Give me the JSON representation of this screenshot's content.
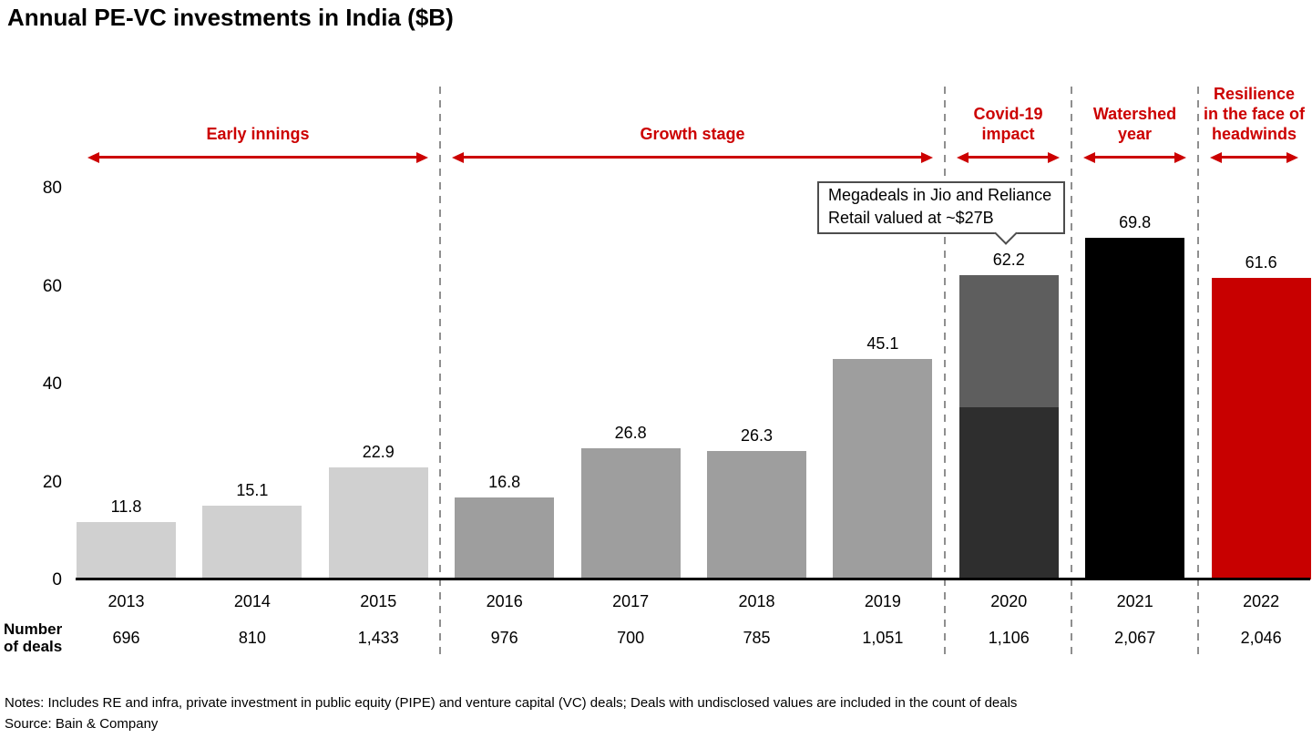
{
  "title": "Annual PE-VC investments in India ($B)",
  "callout": {
    "line1": "Megadeals in Jio and Reliance",
    "line2": "Retail valued at ~$27B"
  },
  "row_header": {
    "line1": "Number",
    "line2": "of deals"
  },
  "notes": "Notes: Includes RE and infra, private investment in public equity (PIPE) and venture capital (VC) deals; Deals with undisclosed values are included in the count of deals",
  "source": "Source: Bain & Company",
  "colors": {
    "phase_text_red": "#cc0000",
    "bar_red_2022": "#c80000",
    "bar_light_gray": "#d0d0d0",
    "bar_mid_gray": "#9e9e9e",
    "bar_2020_top": "#5e5e5e",
    "bar_2020_bottom": "#2e2e2e",
    "bar_black_2021": "#000000",
    "dashed_line_gray": "#8f8f8f"
  },
  "chart_data": {
    "type": "bar",
    "title": "Annual PE-VC investments in India ($B)",
    "xlabel": "",
    "ylabel": "",
    "ylim": [
      0,
      80
    ],
    "yticks": [
      "0",
      "20",
      "40",
      "60",
      "80"
    ],
    "grid": false,
    "legend": "none",
    "categories": [
      "2013",
      "2014",
      "2015",
      "2016",
      "2017",
      "2018",
      "2019",
      "2020",
      "2021",
      "2022"
    ],
    "values": [
      11.8,
      15.1,
      22.9,
      16.8,
      26.8,
      26.3,
      45.1,
      62.2,
      69.8,
      61.6
    ],
    "deals_row_label": "Number of deals",
    "deals": [
      "696",
      "810",
      "1,433",
      "976",
      "700",
      "785",
      "1,051",
      "1,106",
      "2,067",
      "2,046"
    ],
    "annotation": "Megadeals in Jio and Reliance Retail valued at ~$27B",
    "bars": [
      {
        "year": "2013",
        "value": 11.8,
        "label": "11.8",
        "deals": "696",
        "color": "#d0d0d0"
      },
      {
        "year": "2014",
        "value": 15.1,
        "label": "15.1",
        "deals": "810",
        "color": "#d0d0d0"
      },
      {
        "year": "2015",
        "value": 22.9,
        "label": "22.9",
        "deals": "1,433",
        "color": "#d0d0d0"
      },
      {
        "year": "2016",
        "value": 16.8,
        "label": "16.8",
        "deals": "976",
        "color": "#9e9e9e"
      },
      {
        "year": "2017",
        "value": 26.8,
        "label": "26.8",
        "deals": "700",
        "color": "#9e9e9e"
      },
      {
        "year": "2018",
        "value": 26.3,
        "label": "26.3",
        "deals": "785",
        "color": "#9e9e9e"
      },
      {
        "year": "2019",
        "value": 45.1,
        "label": "45.1",
        "deals": "1,051",
        "color": "#9e9e9e"
      },
      {
        "year": "2020",
        "value": 62.2,
        "label": "62.2",
        "deals": "1,106",
        "color": "#5e5e5e",
        "segments": [
          {
            "value": 35.2,
            "color": "#2e2e2e"
          },
          {
            "value": 27.0,
            "color": "#5e5e5e"
          }
        ]
      },
      {
        "year": "2021",
        "value": 69.8,
        "label": "69.8",
        "deals": "2,067",
        "color": "#000000"
      },
      {
        "year": "2022",
        "value": 61.6,
        "label": "61.6",
        "deals": "2,046",
        "color": "#c80000"
      }
    ],
    "phases": [
      {
        "lines": [
          "Early innings"
        ],
        "years": [
          "2013",
          "2014",
          "2015"
        ]
      },
      {
        "lines": [
          "Growth stage"
        ],
        "years": [
          "2016",
          "2017",
          "2018",
          "2019"
        ]
      },
      {
        "lines": [
          "Covid-19",
          "impact"
        ],
        "years": [
          "2020"
        ]
      },
      {
        "lines": [
          "Watershed",
          "year"
        ],
        "years": [
          "2021"
        ]
      },
      {
        "lines": [
          "Resilience",
          "in the face of",
          "headwinds"
        ],
        "years": [
          "2022"
        ]
      }
    ]
  }
}
